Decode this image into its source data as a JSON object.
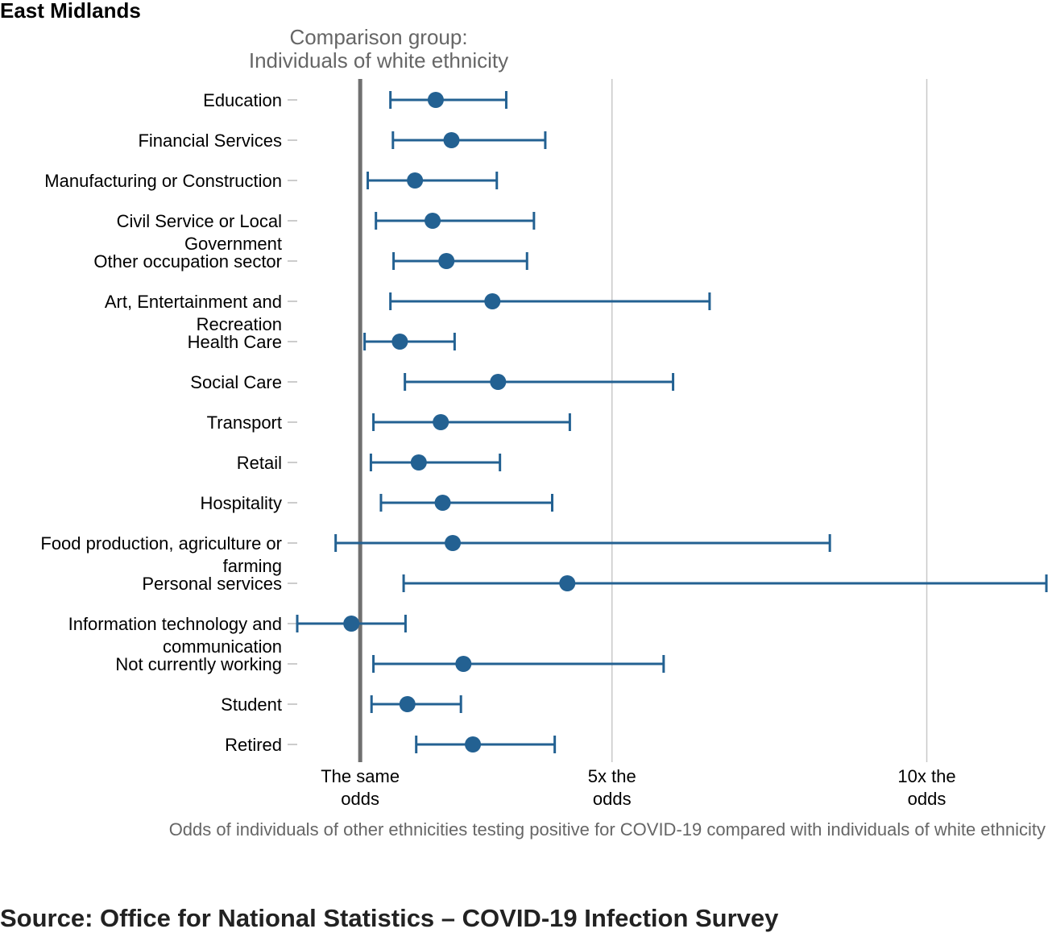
{
  "title": "East Midlands",
  "reference_label": [
    "Comparison group:",
    "Individuals of white ethnicity"
  ],
  "source": "Source: Office for National Statistics – COVID-19 Infection Survey",
  "colors": {
    "point": "#236192",
    "reference": "#707070",
    "grid": "#c8c8c8",
    "text": "#000000",
    "muted": "#666666"
  },
  "chart_data": {
    "type": "scatter",
    "orientation": "horizontal",
    "reference_value": 1,
    "xlim": [
      0.0,
      11.9
    ],
    "x_ticks": [
      {
        "value": 1,
        "label": [
          "The same",
          "odds"
        ]
      },
      {
        "value": 5,
        "label": [
          "5x the",
          "odds"
        ]
      },
      {
        "value": 10,
        "label": [
          "10x the",
          "odds"
        ]
      }
    ],
    "xlabel": "Odds of individuals of other ethnicities testing positive for COVID-19 compared with individuals of white ethnicity",
    "ylabel": "",
    "grid_x": true,
    "categories": [
      {
        "name": [
          "Education"
        ],
        "estimate": 2.2,
        "lower": 1.48,
        "upper": 3.32
      },
      {
        "name": [
          "Financial Services"
        ],
        "estimate": 2.45,
        "lower": 1.52,
        "upper": 3.94
      },
      {
        "name": [
          "Manufacturing or Construction"
        ],
        "estimate": 1.87,
        "lower": 1.12,
        "upper": 3.17
      },
      {
        "name": [
          "Civil Service or Local",
          "Government"
        ],
        "estimate": 2.15,
        "lower": 1.25,
        "upper": 3.76
      },
      {
        "name": [
          "Other occupation sector"
        ],
        "estimate": 2.37,
        "lower": 1.53,
        "upper": 3.65
      },
      {
        "name": [
          "Art, Entertainment and",
          "Recreation"
        ],
        "estimate": 3.1,
        "lower": 1.48,
        "upper": 6.55
      },
      {
        "name": [
          "Health Care"
        ],
        "estimate": 1.63,
        "lower": 1.07,
        "upper": 2.5
      },
      {
        "name": [
          "Social Care"
        ],
        "estimate": 3.19,
        "lower": 1.71,
        "upper": 5.97
      },
      {
        "name": [
          "Transport"
        ],
        "estimate": 2.28,
        "lower": 1.21,
        "upper": 4.33
      },
      {
        "name": [
          "Retail"
        ],
        "estimate": 1.93,
        "lower": 1.17,
        "upper": 3.22
      },
      {
        "name": [
          "Hospitality"
        ],
        "estimate": 2.31,
        "lower": 1.33,
        "upper": 4.05
      },
      {
        "name": [
          "Food production, agriculture or",
          "farming"
        ],
        "estimate": 2.47,
        "lower": 0.61,
        "upper": 8.46
      },
      {
        "name": [
          "Personal services"
        ],
        "estimate": 4.29,
        "lower": 1.69,
        "upper": 11.9
      },
      {
        "name": [
          "Information technology and",
          "communication"
        ],
        "estimate": 0.86,
        "lower": 0.0,
        "upper": 1.72
      },
      {
        "name": [
          "Not currently working"
        ],
        "estimate": 2.64,
        "lower": 1.21,
        "upper": 5.82
      },
      {
        "name": [
          "Student"
        ],
        "estimate": 1.75,
        "lower": 1.18,
        "upper": 2.6
      },
      {
        "name": [
          "Retired"
        ],
        "estimate": 2.79,
        "lower": 1.89,
        "upper": 4.09
      }
    ]
  }
}
